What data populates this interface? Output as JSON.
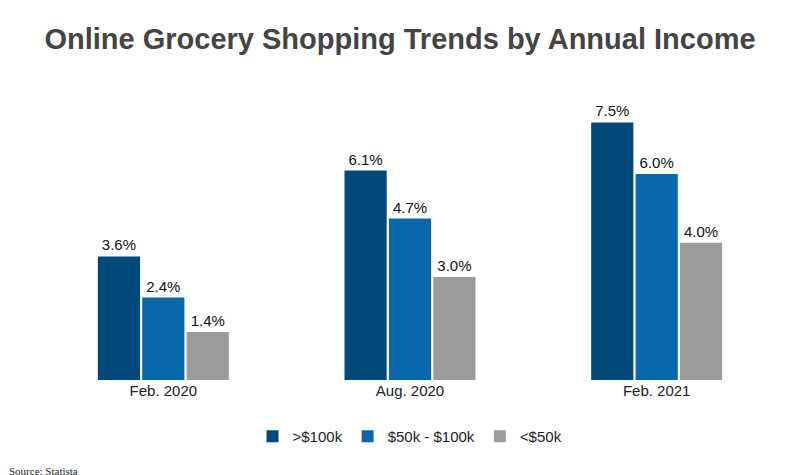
{
  "chart_data": {
    "type": "bar",
    "title": "Online Grocery Shopping Trends by Annual Income",
    "source": "Source: Statista",
    "categories": [
      "Feb. 2020",
      "Aug. 2020",
      "Feb. 2021"
    ],
    "series": [
      {
        "name": ">$100k",
        "color": "#00497a",
        "values": [
          3.6,
          6.1,
          7.5
        ],
        "value_labels": [
          "3.6%",
          "6.1%",
          "7.5%"
        ]
      },
      {
        "name": "$50k - $100k",
        "color": "#0967ab",
        "values": [
          2.4,
          4.7,
          6.0
        ],
        "value_labels": [
          "2.4%",
          "4.7%",
          "6.0%"
        ]
      },
      {
        "name": "<$50k",
        "color": "#9b9b9b",
        "values": [
          1.4,
          3.0,
          4.0
        ],
        "value_labels": [
          "1.4%",
          "3.0%",
          "4.0%"
        ]
      }
    ],
    "ylim": [
      0,
      8.3
    ],
    "grid": false,
    "legend": "bottom",
    "data_labels": true,
    "tick_labels": "x"
  }
}
